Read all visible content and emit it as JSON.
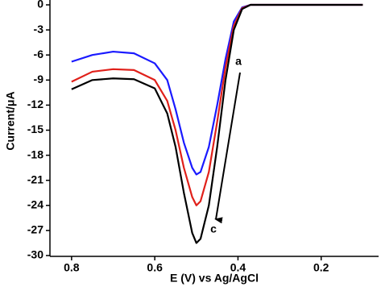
{
  "chart_data": {
    "type": "line",
    "x_label": "E (V) vs Ag/AgCl",
    "y_label": "Current/μA",
    "x": [
      0.8,
      0.75,
      0.7,
      0.65,
      0.6,
      0.57,
      0.55,
      0.53,
      0.51,
      0.5,
      0.49,
      0.47,
      0.45,
      0.43,
      0.41,
      0.39,
      0.37,
      0.3,
      0.2,
      0.1
    ],
    "series": [
      {
        "color": "#1a1aff",
        "values": [
          -6.8,
          -6.0,
          -5.6,
          -5.8,
          -7.0,
          -9.0,
          -12.5,
          -16.5,
          -19.5,
          -20.3,
          -20.0,
          -17.0,
          -12.0,
          -6.5,
          -2.0,
          -0.3,
          0,
          0,
          0,
          0
        ]
      },
      {
        "color": "#e0201a",
        "values": [
          -9.2,
          -8.0,
          -7.7,
          -7.8,
          -9.0,
          -11.5,
          -15.0,
          -19.5,
          -23.0,
          -24.0,
          -23.5,
          -20.0,
          -14.0,
          -7.5,
          -2.5,
          -0.4,
          0,
          0,
          0,
          0
        ]
      },
      {
        "color": "#000000",
        "values": [
          -10.1,
          -9.0,
          -8.8,
          -8.9,
          -10.0,
          -13.0,
          -17.0,
          -22.5,
          -27.3,
          -28.5,
          -28.0,
          -24.0,
          -17.0,
          -9.0,
          -3.0,
          -0.5,
          0,
          0,
          0,
          0
        ]
      }
    ],
    "annotations": [
      "a",
      "c"
    ],
    "xlim": [
      0.852,
      0.062
    ],
    "xticks": [
      0.8,
      0.6,
      0.4,
      0.2
    ],
    "ylim": [
      -30.1,
      0.58
    ],
    "yticks": [
      0,
      -3,
      -6,
      -9,
      -12,
      -15,
      -18,
      -21,
      -24,
      -27,
      -30
    ]
  }
}
